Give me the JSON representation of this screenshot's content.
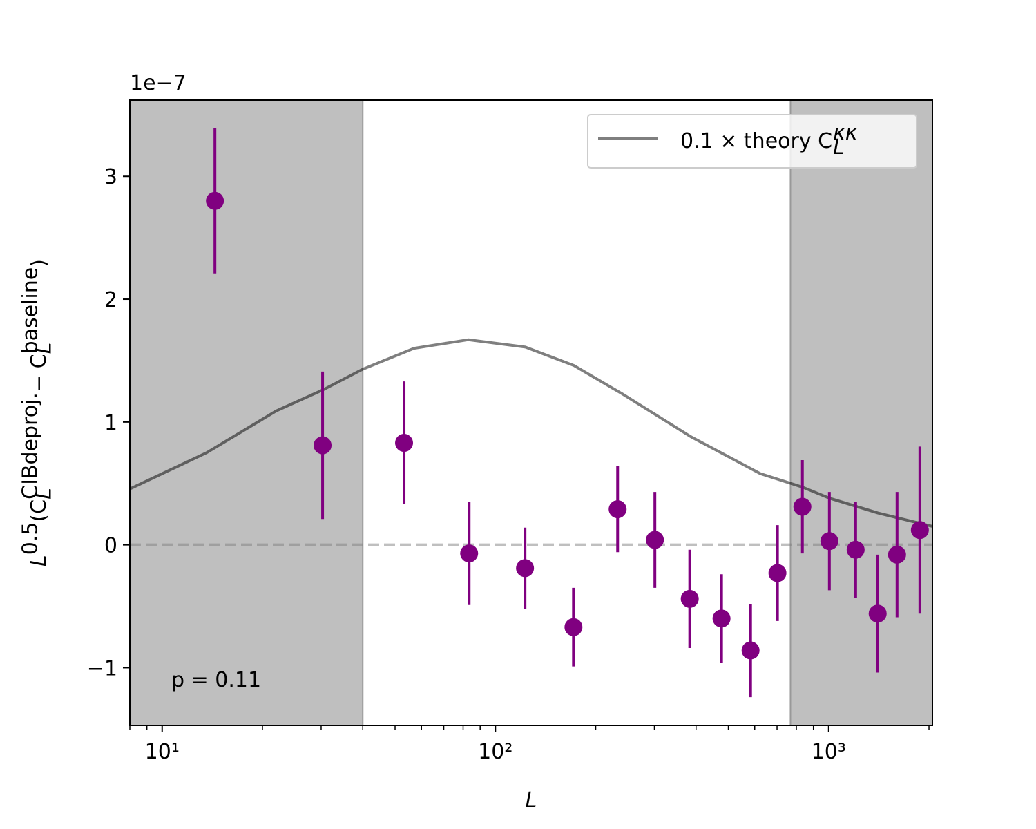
{
  "chart_data": {
    "type": "errorbar",
    "xlabel": "L",
    "ylabel": [
      "L",
      "0.5",
      "(C",
      "CIBdeproj.",
      "L",
      " − C",
      "baseline",
      "L",
      ")"
    ],
    "offset_label": "1e−7",
    "annotation": "p = 0.11",
    "xscale": "log",
    "xlim": [
      8,
      2048
    ],
    "ylim": [
      -1.47,
      3.62
    ],
    "xticks": [
      {
        "value": 10,
        "label": "10¹"
      },
      {
        "value": 100,
        "label": "10²"
      },
      {
        "value": 1000,
        "label": "10³"
      }
    ],
    "xminorticks": [
      8,
      9,
      20,
      30,
      40,
      50,
      60,
      70,
      80,
      90,
      200,
      300,
      400,
      500,
      600,
      700,
      800,
      900,
      2000
    ],
    "yticks": [
      {
        "value": -1,
        "label": "−1"
      },
      0,
      1,
      2,
      3
    ],
    "shaded_regions": [
      [
        8,
        40
      ],
      [
        768,
        2048
      ]
    ],
    "shade_color": "#bfbfbf",
    "hline": {
      "value": 0,
      "color": "#808080",
      "alpha": 0.5
    },
    "legend": "upper right",
    "series": [
      {
        "name": "0.1 × theory C",
        "name_sub": "L",
        "name_sup": "κκ",
        "kind": "line",
        "color": "#000000",
        "alpha": 0.5,
        "x": [
          8,
          13.6,
          22,
          30.3,
          40,
          57,
          83,
          123,
          172,
          240,
          386,
          623,
          834,
          1005,
          1403,
          2048
        ],
        "values": [
          0.455,
          0.75,
          1.09,
          1.26,
          1.43,
          1.6,
          1.67,
          1.61,
          1.46,
          1.23,
          0.88,
          0.58,
          0.47,
          0.38,
          0.26,
          0.15
        ]
      },
      {
        "kind": "points",
        "color": "#800080",
        "x": [
          14.4,
          30.3,
          53.2,
          83.4,
          122.7,
          171.5,
          232.7,
          301,
          383,
          477,
          583,
          702,
          834,
          1005,
          1205,
          1403,
          1604,
          1878
        ],
        "values": [
          2.8,
          0.81,
          0.83,
          -0.07,
          -0.19,
          -0.67,
          0.29,
          0.04,
          -0.44,
          -0.6,
          -0.86,
          -0.23,
          0.31,
          0.03,
          -0.04,
          -0.56,
          -0.08,
          0.12
        ],
        "errors": [
          0.59,
          0.6,
          0.5,
          0.42,
          0.33,
          0.32,
          0.35,
          0.39,
          0.4,
          0.36,
          0.38,
          0.39,
          0.38,
          0.4,
          0.39,
          0.48,
          0.51,
          0.68
        ]
      }
    ]
  }
}
